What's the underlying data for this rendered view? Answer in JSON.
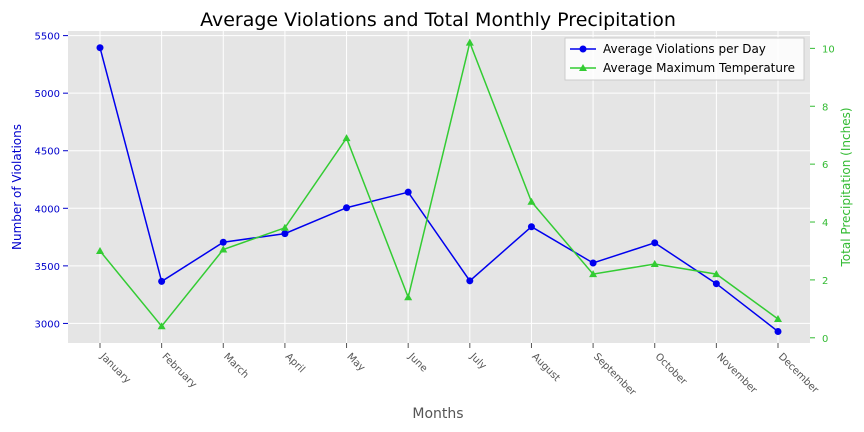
{
  "chart_data": {
    "type": "line",
    "title": "Average Violations and Total Monthly Precipitation",
    "xlabel": "Months",
    "ylabel_left": "Number of Violations",
    "ylabel_right": "Total Precipitation (Inches)",
    "categories": [
      "January",
      "February",
      "March",
      "April",
      "May",
      "June",
      "July",
      "August",
      "September",
      "October",
      "November",
      "December"
    ],
    "ylim_left": [
      2830,
      5540
    ],
    "ylim_right": [
      -0.18,
      10.6
    ],
    "yticks_left": [
      3000,
      3500,
      4000,
      4500,
      5000,
      5500
    ],
    "yticks_right": [
      0,
      2,
      4,
      6,
      8,
      10
    ],
    "grid": true,
    "legend_position": "top-right",
    "series": [
      {
        "name": "Average Violations per Day",
        "axis": "left",
        "color": "#0000ee",
        "marker": "circle",
        "values": [
          5395,
          3365,
          3705,
          3780,
          4005,
          4140,
          3370,
          3840,
          3525,
          3700,
          3345,
          2930
        ]
      },
      {
        "name": "Average Maximum Temperature",
        "axis": "right",
        "color": "#33cc33",
        "marker": "triangle",
        "values": [
          3.0,
          0.4,
          3.05,
          3.8,
          6.9,
          1.4,
          10.2,
          4.7,
          2.2,
          2.55,
          2.2,
          0.65
        ]
      }
    ],
    "colors": {
      "plot_background": "#e5e5e5",
      "grid": "#ffffff",
      "left_axis": "#0000cc",
      "right_axis": "#33bb33",
      "tick_text": "#555555",
      "title": "#000000"
    }
  }
}
